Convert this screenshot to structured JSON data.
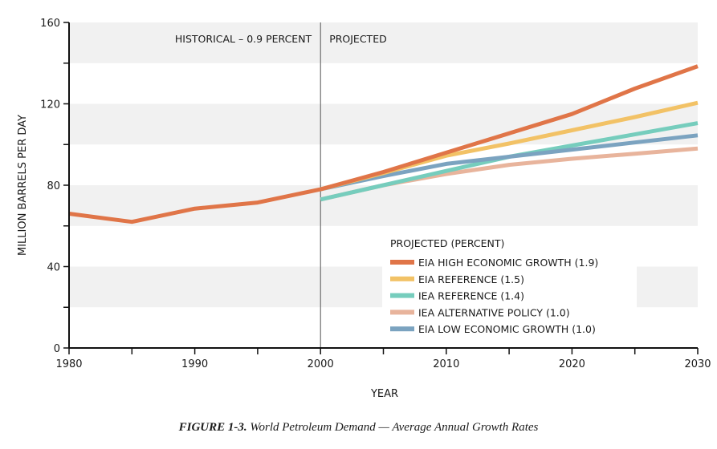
{
  "chart_data": {
    "type": "line",
    "title": "",
    "xlabel": "YEAR",
    "ylabel": "MILLION BARRELS PER DAY",
    "xlim": [
      1980,
      2030
    ],
    "ylim": [
      0,
      160
    ],
    "x_ticks": [
      1980,
      1990,
      2000,
      2010,
      2020,
      2030
    ],
    "x_minor_ticks": [
      1985,
      1995,
      2005,
      2015,
      2025
    ],
    "y_ticks": [
      0,
      40,
      80,
      120,
      160
    ],
    "y_minor_ticks": [
      20,
      60,
      100,
      140
    ],
    "grid": "alternating horizontal bands",
    "band_color": "#f1f1f1",
    "divider_year": 2000,
    "annotations": {
      "historical": "HISTORICAL – 0.9 PERCENT",
      "projected": "PROJECTED"
    },
    "legend": {
      "title": "PROJECTED (PERCENT)",
      "placement": "bottom-right"
    },
    "series": [
      {
        "name": "HISTORICAL",
        "color": "#e07548",
        "x": [
          1980,
          1985,
          1990,
          1995,
          2000
        ],
        "values": [
          66,
          62,
          68.5,
          71.5,
          78
        ],
        "in_legend": false
      },
      {
        "name": "IEA ALTERNATIVE POLICY (1.0)",
        "color": "#e8b49c",
        "x": [
          2000,
          2005,
          2010,
          2015,
          2020,
          2025,
          2030
        ],
        "values": [
          73,
          80,
          85.5,
          90,
          93,
          95.5,
          98
        ],
        "in_legend": true,
        "legend_order": 4
      },
      {
        "name": "IEA REFERENCE (1.4)",
        "color": "#76cdbd",
        "x": [
          2000,
          2005,
          2010,
          2015,
          2020,
          2025,
          2030
        ],
        "values": [
          73,
          80,
          87,
          94,
          99.5,
          105,
          110.5
        ],
        "in_legend": true,
        "legend_order": 3
      },
      {
        "name": "EIA LOW ECONOMIC GROWTH (1.0)",
        "color": "#7ba3c0",
        "x": [
          2000,
          2005,
          2010,
          2015,
          2020,
          2025,
          2030
        ],
        "values": [
          78,
          84.5,
          90.5,
          94,
          97.5,
          101,
          104.5
        ],
        "in_legend": true,
        "legend_order": 5
      },
      {
        "name": "EIA REFERENCE (1.5)",
        "color": "#f2c266",
        "x": [
          2000,
          2005,
          2010,
          2015,
          2020,
          2025,
          2030
        ],
        "values": [
          78,
          86,
          94.5,
          100.5,
          107,
          113.5,
          120.5
        ],
        "in_legend": true,
        "legend_order": 2
      },
      {
        "name": "EIA HIGH ECONOMIC GROWTH (1.9)",
        "color": "#e07548",
        "x": [
          2000,
          2005,
          2010,
          2015,
          2020,
          2025,
          2030
        ],
        "values": [
          78,
          86.5,
          96,
          105.5,
          115,
          127.5,
          138.5
        ],
        "in_legend": true,
        "legend_order": 1
      }
    ]
  },
  "caption": {
    "label": "FIGURE 1-3.",
    "text": " World Petroleum Demand — Average Annual Growth Rates"
  }
}
